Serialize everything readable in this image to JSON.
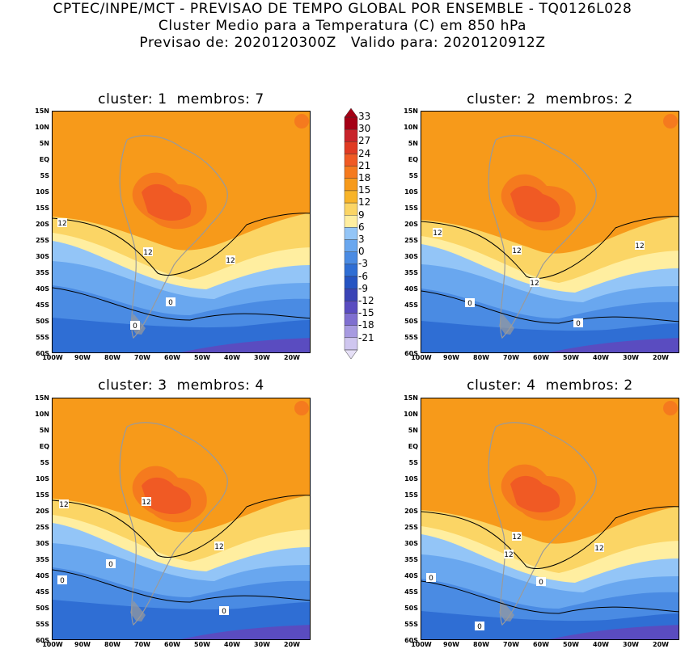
{
  "header": {
    "line1": "CPTEC/INPE/MCT - PREVISAO DE TEMPO GLOBAL POR ENSEMBLE - TQ0126L028",
    "line2": "Cluster Medio para a Temperatura (C) em 850 hPa",
    "line3": "Previsao de: 2020120300Z   Valido para: 2020120912Z"
  },
  "panels": [
    {
      "title": "cluster: 1  membros: 7",
      "contour_labels": [
        "12",
        "12",
        "12",
        "0",
        "0"
      ]
    },
    {
      "title": "cluster: 2  membros: 2",
      "contour_labels": [
        "12",
        "12",
        "12",
        "12",
        "0",
        "0"
      ]
    },
    {
      "title": "cluster: 3  membros: 4",
      "contour_labels": [
        "12",
        "12",
        "12",
        "0",
        "0",
        "0"
      ]
    },
    {
      "title": "cluster: 4  membros: 2",
      "contour_labels": [
        "12",
        "12",
        "12",
        "0",
        "0",
        "0"
      ]
    }
  ],
  "lat_labels": [
    "15N",
    "10N",
    "5N",
    "EQ",
    "5S",
    "10S",
    "15S",
    "20S",
    "25S",
    "30S",
    "35S",
    "40S",
    "45S",
    "50S",
    "55S",
    "60S"
  ],
  "lon_labels": [
    "100W",
    "90W",
    "80W",
    "70W",
    "60W",
    "50W",
    "40W",
    "30W",
    "20W"
  ],
  "colorbar": {
    "labels": [
      "33",
      "30",
      "27",
      "24",
      "21",
      "18",
      "15",
      "12",
      "9",
      "6",
      "3",
      "0",
      "-3",
      "-6",
      "-9",
      "-12",
      "-15",
      "-18",
      "-21"
    ],
    "colors": [
      "#a50015",
      "#c8232a",
      "#e03a23",
      "#f05a24",
      "#f57a1e",
      "#f79a1a",
      "#f8b429",
      "#fbd565",
      "#ffeea0",
      "#93c5f7",
      "#69a7ef",
      "#4a8be3",
      "#2f6ed4",
      "#2554c2",
      "#3a44b6",
      "#5a4cc0",
      "#7f6fd0",
      "#a79ae0",
      "#cfc6ef"
    ]
  }
}
